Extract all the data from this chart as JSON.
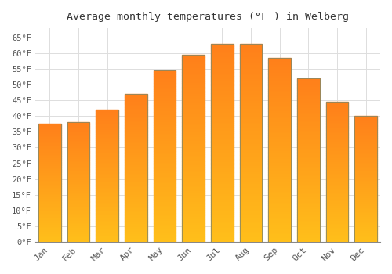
{
  "title": "Average monthly temperatures (°F ) in Welberg",
  "months": [
    "Jan",
    "Feb",
    "Mar",
    "Apr",
    "May",
    "Jun",
    "Jul",
    "Aug",
    "Sep",
    "Oct",
    "Nov",
    "Dec"
  ],
  "values": [
    37.5,
    38.0,
    42.0,
    47.0,
    54.5,
    59.5,
    63.0,
    63.0,
    58.5,
    52.0,
    44.5,
    40.0
  ],
  "bar_color_top": "#FFA500",
  "bar_color_bottom": "#FFD050",
  "bar_edge_color": "#888866",
  "background_color": "#FFFFFF",
  "grid_color": "#DDDDDD",
  "text_color": "#555555",
  "ylim": [
    0,
    68
  ],
  "ytick_step": 5,
  "figsize": [
    5.0,
    3.5
  ],
  "dpi": 100
}
